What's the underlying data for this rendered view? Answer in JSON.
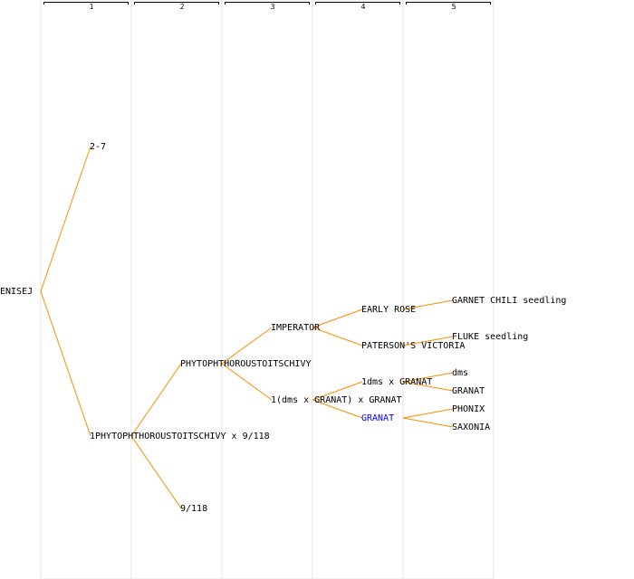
{
  "generations": [
    "1",
    "2",
    "3",
    "4",
    "5"
  ],
  "colors": {
    "edge": "#ff8c00",
    "label": "#000000",
    "highlight": "#0000ff",
    "column_border": "#e4e4e4"
  },
  "pedigree": {
    "root": "ENISEJ",
    "nodes": [
      {
        "id": "n2_7",
        "label": "2-7",
        "parent": "root"
      },
      {
        "id": "n1phy",
        "label": "1PHYTOPHTHOROUSTOITSCHIVY x 9/118",
        "parent": "root"
      },
      {
        "id": "nphy",
        "label": "PHYTOPHTHOROUSTOITSCHIVY",
        "parent": "n1phy"
      },
      {
        "id": "n9118",
        "label": "9/118",
        "parent": "n1phy"
      },
      {
        "id": "nimp",
        "label": "IMPERATOR",
        "parent": "nphy"
      },
      {
        "id": "n1dms",
        "label": "1(dms x GRANAT) x GRANAT",
        "parent": "nphy"
      },
      {
        "id": "nearly",
        "label": "EARLY ROSE",
        "parent": "nimp"
      },
      {
        "id": "npat",
        "label": "PATERSON'S VICTORIA",
        "parent": "nimp"
      },
      {
        "id": "n1dmsg",
        "label": "1dms x GRANAT",
        "parent": "n1dms"
      },
      {
        "id": "ngranat4",
        "label": "GRANAT",
        "parent": "n1dms",
        "highlight": true
      },
      {
        "id": "ngarnet",
        "label": "GARNET CHILI seedling",
        "parent": "nearly"
      },
      {
        "id": "nfluke",
        "label": "FLUKE seedling",
        "parent": "npat"
      },
      {
        "id": "ndms",
        "label": "dms",
        "parent": "n1dmsg"
      },
      {
        "id": "ngranat5",
        "label": "GRANAT",
        "parent": "n1dmsg"
      },
      {
        "id": "nphonix",
        "label": "PHONIX",
        "parent": "ngranat4"
      },
      {
        "id": "nsaxonia",
        "label": "SAXONIA",
        "parent": "ngranat4"
      }
    ]
  }
}
